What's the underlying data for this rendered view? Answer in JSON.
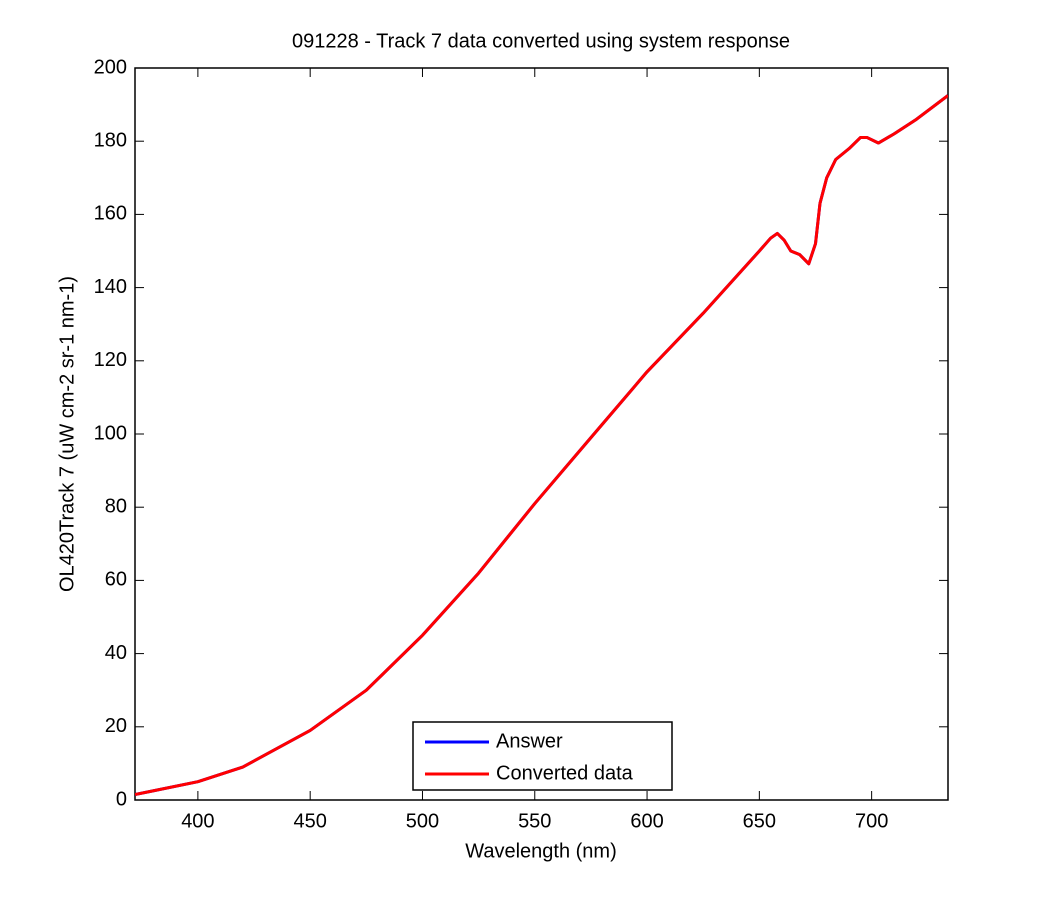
{
  "chart_data": {
    "type": "line",
    "title": "091228 - Track 7 data converted using system response",
    "x_label": "Wavelength (nm)",
    "y_label": "OL420Track 7 (uW cm-2 sr-1 nm-1)",
    "x": [
      372,
      380,
      400,
      420,
      450,
      475,
      500,
      525,
      550,
      575,
      600,
      625,
      650,
      655,
      658,
      661,
      664,
      668,
      672,
      675,
      677,
      680,
      684,
      690,
      695,
      698,
      703,
      710,
      720,
      734
    ],
    "series": [
      {
        "name": "Answer",
        "color": "#0000ff",
        "values": [
          1.5,
          2.5,
          5,
          9,
          19,
          30,
          45,
          62,
          81,
          99,
          117,
          133,
          150,
          153.5,
          154.8,
          153,
          150,
          149,
          146.5,
          152,
          163,
          170,
          175,
          178,
          181,
          181,
          179.5,
          182,
          186,
          192.5
        ]
      },
      {
        "name": "Converted data",
        "color": "#ff0000",
        "values": [
          1.5,
          2.5,
          5,
          9,
          19,
          30,
          45,
          62,
          81,
          99,
          117,
          133,
          150,
          153.5,
          154.8,
          153,
          150,
          149,
          146.5,
          152,
          163,
          170,
          175,
          178,
          181,
          181,
          179.5,
          182,
          186,
          192.5
        ]
      }
    ],
    "xlim": [
      372,
      734
    ],
    "xticks": [
      400,
      450,
      500,
      550,
      600,
      650,
      700
    ],
    "ylim": [
      0,
      200
    ],
    "yticks": [
      0,
      20,
      40,
      60,
      80,
      100,
      120,
      140,
      160,
      180,
      200
    ],
    "grid": false,
    "legend": "south"
  }
}
